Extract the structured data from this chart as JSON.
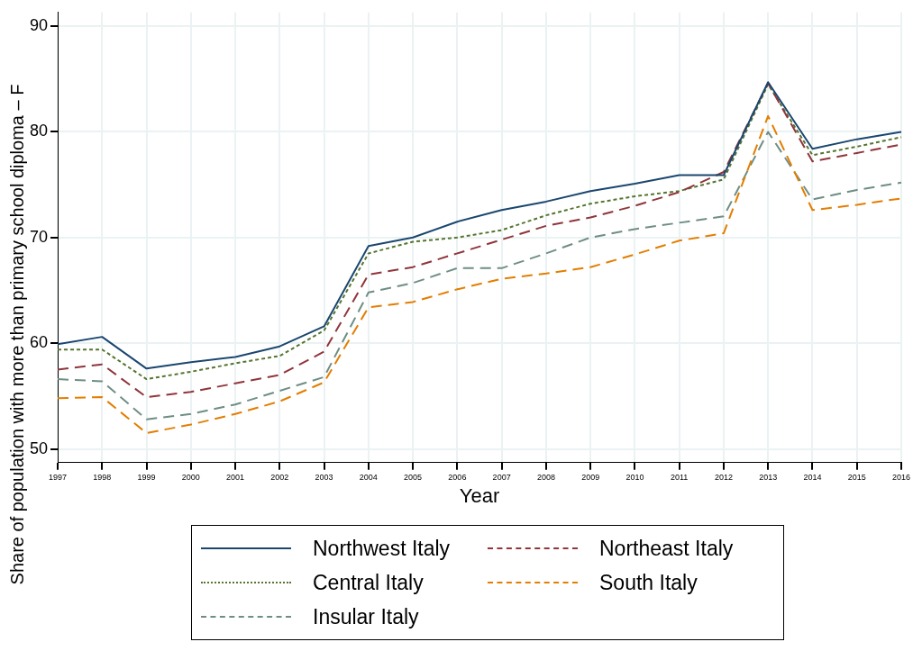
{
  "chart_data": {
    "type": "line",
    "xlabel": "Year",
    "ylabel": "Share of population with more than primary school diploma – F",
    "categories": [
      "1997",
      "1998",
      "1999",
      "2000",
      "2001",
      "2002",
      "2003",
      "2004",
      "2005",
      "2006",
      "2007",
      "2008",
      "2009",
      "2010",
      "2011",
      "2012",
      "2013",
      "2014",
      "2015",
      "2016"
    ],
    "ylim": [
      48.7,
      91.3
    ],
    "yticks": [
      50,
      60,
      70,
      80,
      90
    ],
    "grid": true,
    "legend": "bottom",
    "series": [
      {
        "name": "Northwest Italy",
        "color": "#1a476f",
        "line_style": "solid",
        "values": [
          59.9,
          60.6,
          57.6,
          58.2,
          58.7,
          59.7,
          61.6,
          69.2,
          70.0,
          71.5,
          72.6,
          73.4,
          74.4,
          75.1,
          75.9,
          75.9,
          84.7,
          78.4,
          79.3,
          80.0
        ]
      },
      {
        "name": "Northeast Italy",
        "color": "#90353b",
        "line_style": "dashed",
        "values": [
          57.5,
          58.0,
          54.9,
          55.4,
          56.2,
          57.0,
          59.2,
          66.5,
          67.2,
          68.5,
          69.8,
          71.1,
          71.9,
          73.0,
          74.3,
          76.2,
          84.6,
          77.2,
          78.0,
          78.8
        ]
      },
      {
        "name": "Central Italy",
        "color": "#55752f",
        "line_style": "dotted",
        "values": [
          59.4,
          59.4,
          56.6,
          57.3,
          58.1,
          58.8,
          61.2,
          68.5,
          69.6,
          70.0,
          70.7,
          72.1,
          73.2,
          73.9,
          74.4,
          75.5,
          84.5,
          77.8,
          78.6,
          79.5
        ]
      },
      {
        "name": "South Italy",
        "color": "#e37e00",
        "line_style": "dashed",
        "values": [
          54.8,
          54.9,
          51.5,
          52.3,
          53.3,
          54.5,
          56.3,
          63.4,
          63.9,
          65.1,
          66.1,
          66.6,
          67.2,
          68.4,
          69.7,
          70.4,
          81.5,
          72.6,
          73.1,
          73.7
        ]
      },
      {
        "name": "Insular Italy",
        "color": "#6e8e84",
        "line_style": "dashed",
        "values": [
          56.6,
          56.4,
          52.8,
          53.3,
          54.2,
          55.5,
          56.8,
          64.8,
          65.7,
          67.1,
          67.1,
          68.5,
          70.0,
          70.8,
          71.4,
          72.0,
          80.0,
          73.6,
          74.5,
          75.2
        ]
      }
    ]
  }
}
